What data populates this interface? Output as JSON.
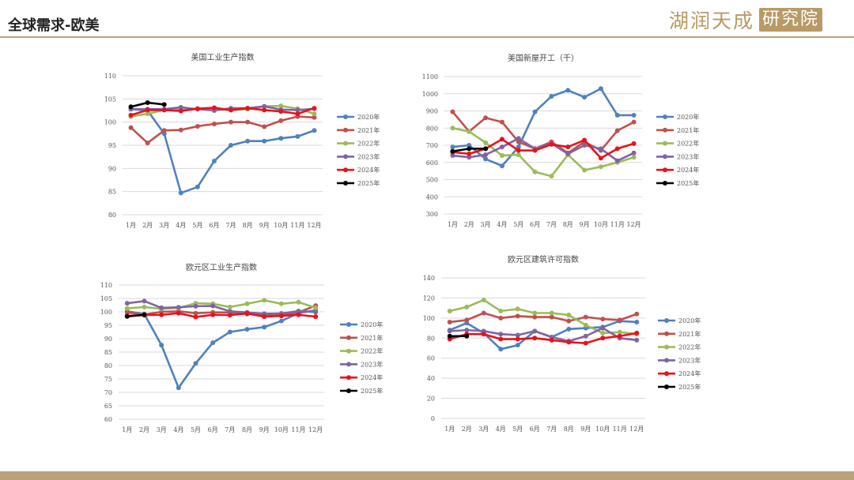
{
  "page": {
    "title": "全球需求-欧美",
    "logo_text": "湖润天成",
    "logo_boxed_text": "研究院"
  },
  "colors": {
    "2020年": "#4f81bd",
    "2021年": "#c0504d",
    "2022年": "#9bbb59",
    "2023年": "#8064a2",
    "2024年": "#e8121b",
    "2025年": "#000000",
    "accent": "#b9a27a"
  },
  "chart_data": [
    {
      "id": "us-ip",
      "type": "line",
      "title": "美国工业生产指数",
      "categories": [
        "1月",
        "2月",
        "3月",
        "4月",
        "5月",
        "6月",
        "7月",
        "8月",
        "9月",
        "10月",
        "11月",
        "12月"
      ],
      "ylim": [
        80,
        110
      ],
      "yticks": [
        80,
        85,
        90,
        95,
        100,
        105,
        110
      ],
      "grid": true,
      "legend": "right",
      "series": [
        {
          "name": "2020年",
          "values": [
            102.8,
            102.5,
            97.5,
            84.7,
            86.0,
            91.6,
            95.0,
            95.9,
            95.9,
            96.5,
            96.9,
            98.2
          ]
        },
        {
          "name": "2021年",
          "values": [
            98.8,
            95.5,
            98.2,
            98.3,
            99.1,
            99.6,
            100.0,
            100.0,
            99.0,
            100.3,
            101.2,
            101.0
          ]
        },
        {
          "name": "2022年",
          "values": [
            101.2,
            101.8,
            102.6,
            102.8,
            102.9,
            102.7,
            102.6,
            102.8,
            103.4,
            103.5,
            102.9,
            101.8
          ]
        },
        {
          "name": "2023年",
          "values": [
            102.8,
            102.8,
            102.8,
            103.2,
            102.8,
            102.5,
            103.0,
            103.0,
            103.4,
            102.7,
            102.6,
            102.9
          ]
        },
        {
          "name": "2024年",
          "values": [
            101.5,
            102.6,
            102.6,
            102.4,
            102.9,
            103.1,
            102.6,
            103.0,
            102.6,
            102.3,
            101.8,
            103.0
          ]
        },
        {
          "name": "2025年",
          "values": [
            103.3,
            104.2,
            103.8,
            null,
            null,
            null,
            null,
            null,
            null,
            null,
            null,
            null
          ]
        }
      ]
    },
    {
      "id": "us-starts",
      "type": "line",
      "title": "美国新屋开工（千）",
      "categories": [
        "1月",
        "2月",
        "3月",
        "4月",
        "5月",
        "6月",
        "7月",
        "8月",
        "9月",
        "10月",
        "11月",
        "12月"
      ],
      "ylim": [
        300,
        1100
      ],
      "yticks": [
        300,
        400,
        500,
        600,
        700,
        800,
        900,
        1000,
        1100
      ],
      "grid": true,
      "legend": "right",
      "series": [
        {
          "name": "2020年",
          "values": [
            690,
            700,
            620,
            580,
            690,
            895,
            985,
            1020,
            980,
            1030,
            875,
            875
          ]
        },
        {
          "name": "2021年",
          "values": [
            895,
            780,
            860,
            835,
            720,
            680,
            720,
            655,
            720,
            670,
            785,
            835
          ]
        },
        {
          "name": "2022年",
          "values": [
            800,
            780,
            715,
            640,
            645,
            545,
            520,
            645,
            555,
            575,
            600,
            630
          ]
        },
        {
          "name": "2023年",
          "values": [
            640,
            630,
            645,
            690,
            740,
            680,
            710,
            650,
            700,
            680,
            610,
            655
          ]
        },
        {
          "name": "2024年",
          "values": [
            660,
            650,
            680,
            735,
            670,
            670,
            705,
            690,
            730,
            625,
            680,
            710
          ]
        },
        {
          "name": "2025年",
          "values": [
            665,
            680,
            680,
            null,
            null,
            null,
            null,
            null,
            null,
            null,
            null,
            null
          ]
        }
      ]
    },
    {
      "id": "eu-ip",
      "type": "line",
      "title": "欧元区工业生产指数",
      "categories": [
        "1月",
        "2月",
        "3月",
        "4月",
        "5月",
        "6月",
        "7月",
        "8月",
        "9月",
        "10月",
        "11月",
        "12月"
      ],
      "ylim": [
        60,
        110
      ],
      "yticks": [
        60,
        65,
        70,
        75,
        80,
        85,
        90,
        95,
        100,
        105,
        110
      ],
      "grid": true,
      "legend": "right",
      "series": [
        {
          "name": "2020年",
          "values": [
            100.2,
            99.2,
            87.6,
            71.7,
            80.8,
            88.5,
            92.5,
            93.5,
            94.3,
            96.6,
            99.5,
            100.6
          ]
        },
        {
          "name": "2021年",
          "values": [
            99.8,
            99.0,
            100.0,
            100.2,
            99.5,
            99.8,
            99.8,
            99.2,
            99.0,
            99.0,
            99.8,
            102.3
          ]
        },
        {
          "name": "2022年",
          "values": [
            101.3,
            101.8,
            101.1,
            101.4,
            103.2,
            103.0,
            101.8,
            103.0,
            104.3,
            103.0,
            103.6,
            101.5
          ]
        },
        {
          "name": "2023年",
          "values": [
            103.2,
            104.0,
            101.5,
            101.7,
            102.1,
            102.2,
            100.2,
            99.8,
            99.3,
            99.4,
            100.3,
            99.9
          ]
        },
        {
          "name": "2024年",
          "values": [
            98.5,
            98.8,
            98.9,
            99.5,
            98.1,
            98.9,
            98.8,
            99.4,
            98.2,
            98.5,
            98.9,
            98.2
          ]
        },
        {
          "name": "2025年",
          "values": [
            98.3,
            98.9,
            null,
            null,
            null,
            null,
            null,
            null,
            null,
            null,
            null,
            null
          ]
        }
      ]
    },
    {
      "id": "eu-permits",
      "type": "line",
      "title": "欧元区建筑许可指数",
      "categories": [
        "1月",
        "2月",
        "3月",
        "4月",
        "5月",
        "6月",
        "7月",
        "8月",
        "9月",
        "10月",
        "11月",
        "12月"
      ],
      "ylim": [
        0,
        140
      ],
      "yticks": [
        0,
        20,
        40,
        60,
        80,
        100,
        120,
        140
      ],
      "grid": true,
      "legend": "right",
      "series": [
        {
          "name": "2020年",
          "values": [
            88,
            95,
            85,
            69,
            73,
            87,
            81,
            89,
            90,
            91,
            97,
            96
          ]
        },
        {
          "name": "2021年",
          "values": [
            96,
            98,
            105,
            100,
            102,
            101,
            101,
            97,
            101,
            99,
            98,
            104
          ]
        },
        {
          "name": "2022年",
          "values": [
            107,
            111,
            118,
            107,
            109,
            105,
            105,
            103,
            93,
            85,
            86,
            84
          ]
        },
        {
          "name": "2023年",
          "values": [
            87,
            88,
            87,
            84,
            83,
            87,
            81,
            77,
            82,
            90,
            80,
            78
          ]
        },
        {
          "name": "2024年",
          "values": [
            79,
            84,
            84,
            79,
            79,
            80,
            78,
            76,
            75,
            80,
            82,
            85
          ]
        },
        {
          "name": "2025年",
          "values": [
            82,
            82,
            null,
            null,
            null,
            null,
            null,
            null,
            null,
            null,
            null,
            null
          ]
        }
      ]
    }
  ]
}
